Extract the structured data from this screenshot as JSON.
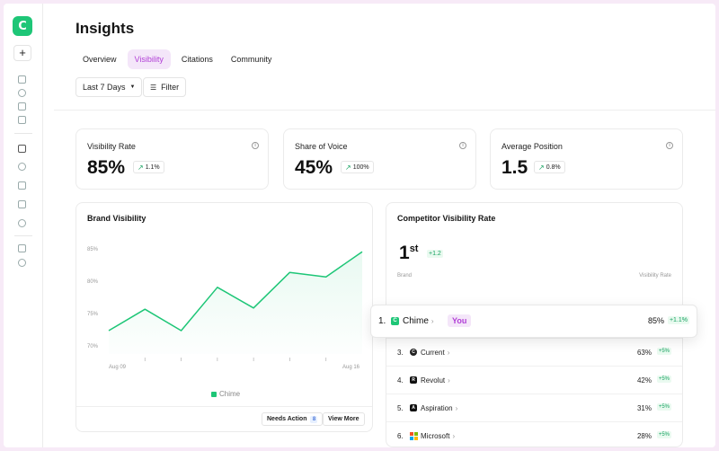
{
  "app": {
    "logo_letter": "C"
  },
  "page": {
    "title": "Insights"
  },
  "tabs": [
    {
      "label": "Overview",
      "active": false
    },
    {
      "label": "Visibility",
      "active": true
    },
    {
      "label": "Citations",
      "active": false
    },
    {
      "label": "Community",
      "active": false
    }
  ],
  "filters": {
    "date_range": "Last 7 Days",
    "filter_label": "Filter"
  },
  "metrics": [
    {
      "label": "Visibility Rate",
      "value": "85%",
      "delta": "1.1%"
    },
    {
      "label": "Share of Voice",
      "value": "45%",
      "delta": "100%"
    },
    {
      "label": "Average Position",
      "value": "1.5",
      "delta": "0.8%"
    }
  ],
  "brand_visibility": {
    "title": "Brand Visibility",
    "needs_action_label": "Needs Action",
    "needs_action_count": "8",
    "view_more_label": "View More"
  },
  "chart_data": {
    "type": "area",
    "title": "Brand Visibility",
    "x_labels": [
      "Aug 09",
      "Aug 16"
    ],
    "x": [
      0,
      1,
      2,
      3,
      4,
      5,
      6,
      7
    ],
    "series": [
      {
        "name": "Chime",
        "values": [
          72.5,
          75.8,
          72.5,
          79.2,
          76.0,
          81.5,
          80.8,
          84.7
        ],
        "color": "#1ec677"
      }
    ],
    "y_ticks": [
      "85%",
      "80%",
      "75%",
      "70%"
    ],
    "ylim": [
      70,
      85
    ],
    "legend": "bottom",
    "grid": false
  },
  "competitors": {
    "title": "Competitor Visibility Rate",
    "rank_number": "1",
    "rank_suffix": "st",
    "rank_delta": "+1.2",
    "col_brand": "Brand",
    "col_rate": "Visibility Rate",
    "top": {
      "rank": "1.",
      "name": "Chime",
      "badge": "You",
      "rate": "85%",
      "delta": "+1.1%",
      "icon": "chime-icon",
      "color": "#1ec677"
    },
    "rows": [
      {
        "rank": "3.",
        "name": "Current",
        "rate": "63%",
        "delta": "+5%",
        "icon": "current-icon",
        "color": "#222222",
        "letter": "C"
      },
      {
        "rank": "4.",
        "name": "Revolut",
        "rate": "42%",
        "delta": "+5%",
        "icon": "revolut-icon",
        "color": "#111111",
        "letter": "R"
      },
      {
        "rank": "5.",
        "name": "Aspiration",
        "rate": "31%",
        "delta": "+5%",
        "icon": "aspiration-icon",
        "color": "#111111",
        "letter": "A"
      },
      {
        "rank": "6.",
        "name": "Microsoft",
        "rate": "28%",
        "delta": "+5%",
        "icon": "microsoft-icon",
        "color": "#f35325",
        "letter": ""
      }
    ]
  }
}
